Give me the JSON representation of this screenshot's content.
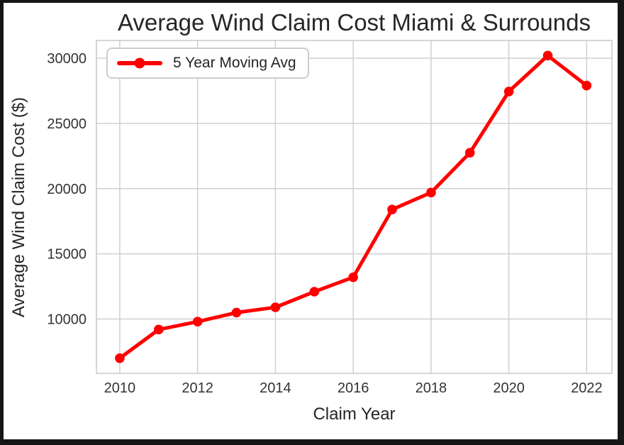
{
  "chart_data": {
    "type": "line",
    "title": "Average Wind Claim Cost Miami & Surrounds",
    "xlabel": "Claim Year",
    "ylabel": "Average Wind Claim Cost ($)",
    "legend_label": "5 Year Moving Avg",
    "legend_position": "upper left",
    "grid": true,
    "x": [
      2010,
      2011,
      2012,
      2013,
      2014,
      2015,
      2016,
      2017,
      2018,
      2019,
      2020,
      2021,
      2022
    ],
    "y": [
      7000,
      9200,
      9800,
      10500,
      10900,
      12100,
      13200,
      18400,
      19700,
      22750,
      27450,
      30200,
      27900
    ],
    "xticks": [
      2010,
      2012,
      2014,
      2016,
      2018,
      2020,
      2022
    ],
    "yticks": [
      10000,
      15000,
      20000,
      25000,
      30000
    ],
    "xlim": [
      2009.4,
      2022.65
    ],
    "ylim": [
      5840,
      31360
    ],
    "line_color": "#ff0000",
    "marker": "o",
    "grid_color": "#cfcfcf",
    "frame_color": "#c8c8c8",
    "text_color": "#333333"
  }
}
